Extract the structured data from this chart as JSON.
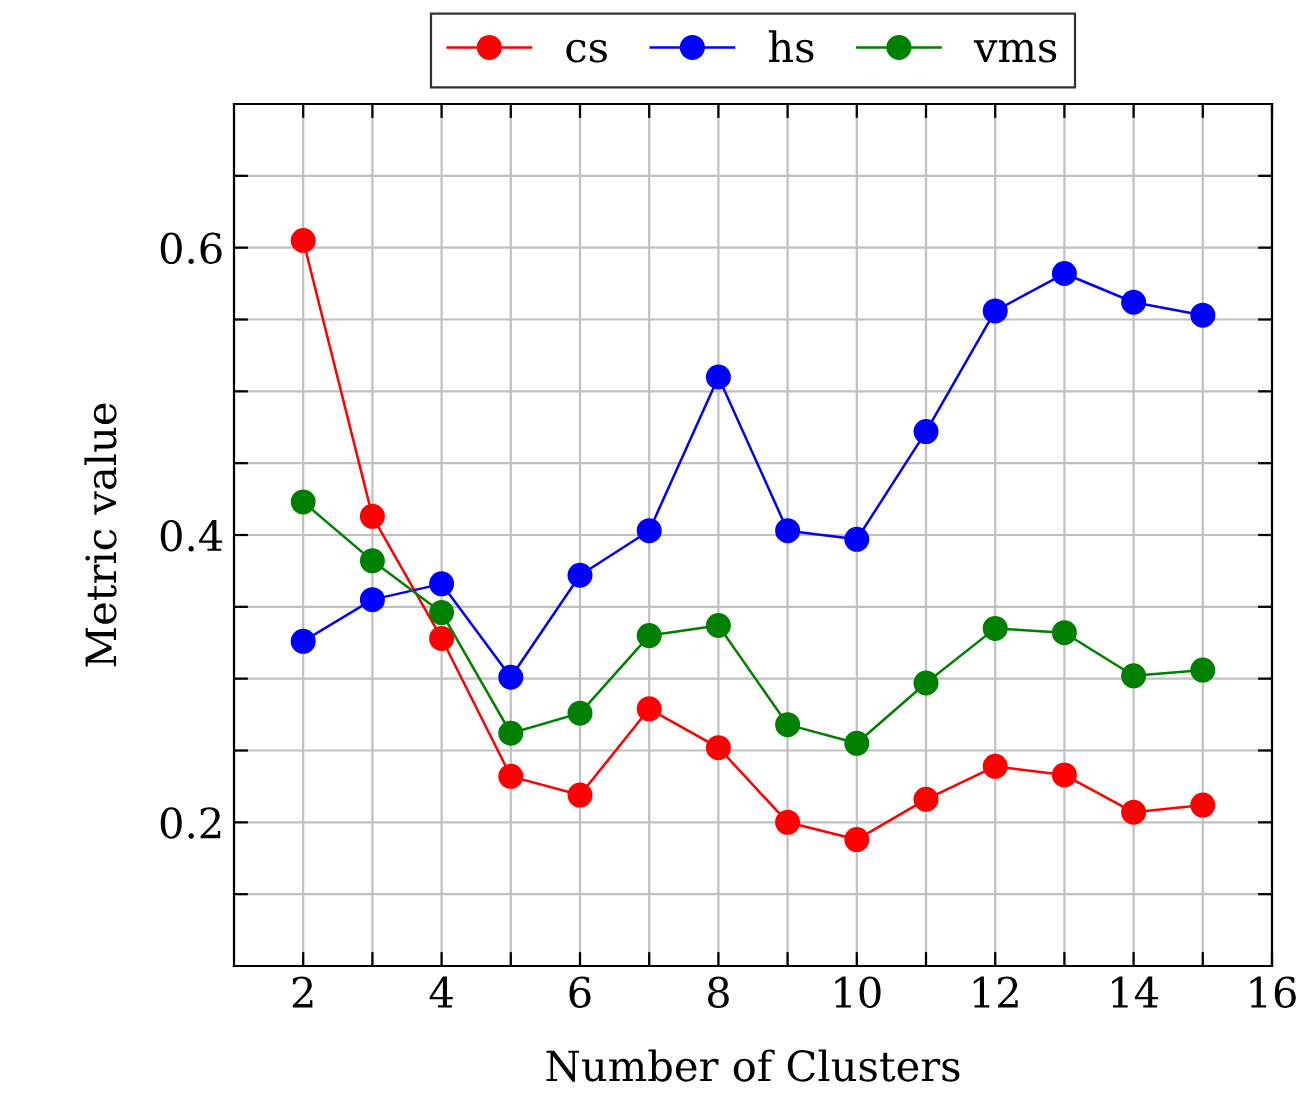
{
  "chart_data": {
    "type": "line",
    "xlabel": "Number of Clusters",
    "ylabel": "Metric value",
    "x": [
      2,
      3,
      4,
      5,
      6,
      7,
      8,
      9,
      10,
      11,
      12,
      13,
      14,
      15
    ],
    "series": [
      {
        "name": "cs",
        "color": "#ff0000",
        "values": [
          0.605,
          0.413,
          0.328,
          0.232,
          0.219,
          0.279,
          0.252,
          0.2,
          0.188,
          0.216,
          0.239,
          0.233,
          0.207,
          0.212
        ]
      },
      {
        "name": "hs",
        "color": "#0000ff",
        "values": [
          0.326,
          0.355,
          0.366,
          0.301,
          0.372,
          0.403,
          0.51,
          0.403,
          0.397,
          0.472,
          0.556,
          0.582,
          0.562,
          0.553
        ]
      },
      {
        "name": "vms",
        "color": "#008000",
        "values": [
          0.423,
          0.382,
          0.346,
          0.262,
          0.276,
          0.33,
          0.337,
          0.268,
          0.255,
          0.297,
          0.335,
          0.332,
          0.302,
          0.306
        ]
      }
    ],
    "xlim": [
      1,
      16
    ],
    "ylim": [
      0.1,
      0.7
    ],
    "xticks": [
      2,
      {
        "value": 3,
        "label": null
      },
      4,
      {
        "value": 5,
        "label": null
      },
      6,
      {
        "value": 7,
        "label": null
      },
      8,
      {
        "value": 9,
        "label": null
      },
      10,
      {
        "value": 11,
        "label": null
      },
      12,
      {
        "value": 13,
        "label": null
      },
      14,
      {
        "value": 15,
        "label": null
      },
      16
    ],
    "yticks": [
      {
        "value": 0.15,
        "label": null
      },
      0.2,
      {
        "value": 0.25,
        "label": null
      },
      {
        "value": 0.3,
        "label": null
      },
      {
        "value": 0.35,
        "label": null
      },
      0.4,
      {
        "value": 0.45,
        "label": null
      },
      {
        "value": 0.5,
        "label": null
      },
      {
        "value": 0.55,
        "label": null
      },
      0.6,
      {
        "value": 0.65,
        "label": null
      }
    ],
    "grid": true,
    "legend": "top",
    "marker": "circle",
    "line_style": "solid"
  }
}
